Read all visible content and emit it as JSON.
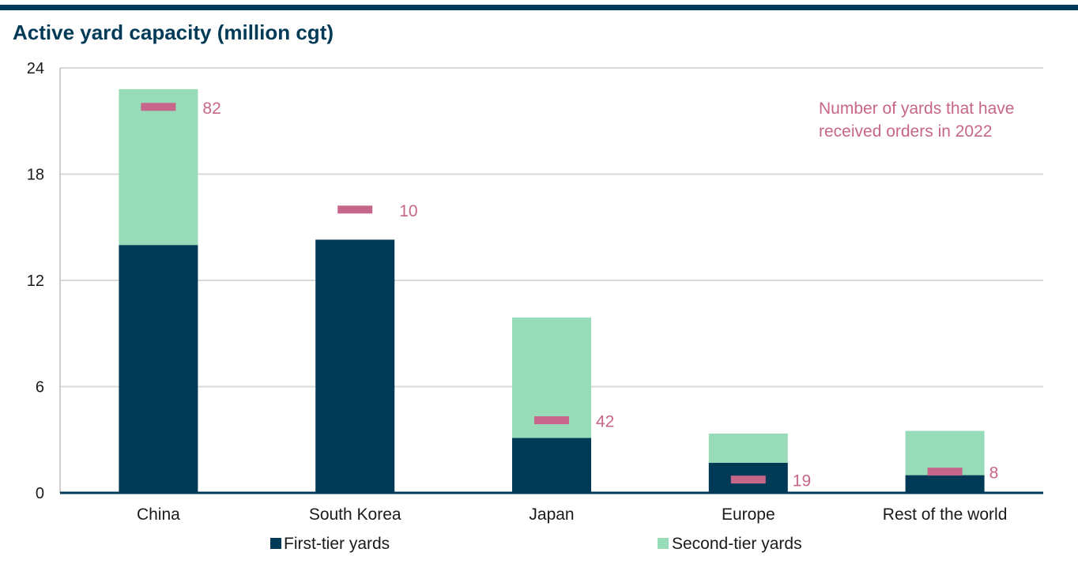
{
  "header": {
    "title": "Active yard capacity (million cgt)"
  },
  "colors": {
    "first_tier": "#003a57",
    "second_tier": "#97dbb9",
    "marker": "#c6668a",
    "grid": "#d9d9d9",
    "rule": "#003a57"
  },
  "chart_data": {
    "type": "bar",
    "stacked": true,
    "title": "Active yard capacity (million cgt)",
    "categories": [
      "China",
      "South Korea",
      "Japan",
      "Europe",
      "Rest of the world"
    ],
    "series": [
      {
        "name": "First-tier yards",
        "values": [
          14.0,
          14.3,
          3.1,
          1.7,
          1.0
        ]
      },
      {
        "name": "Second-tier yards",
        "values": [
          8.8,
          0.0,
          6.8,
          1.65,
          2.5
        ]
      }
    ],
    "markers": {
      "name": "Number of yards that have received orders in 2022",
      "positions": [
        21.8,
        16.0,
        4.1,
        0.75,
        1.2
      ],
      "labels": [
        "82",
        "10",
        "42",
        "19",
        "8"
      ]
    },
    "annotation": {
      "lines": [
        "Number of yards that have",
        "received orders in 2022"
      ]
    },
    "ylim": [
      0,
      24
    ],
    "yticks": [
      0,
      6,
      12,
      18,
      24
    ],
    "ytick_labels": [
      "0",
      "6",
      "12",
      "18",
      "24"
    ],
    "grid": true,
    "legend": "bottom"
  }
}
